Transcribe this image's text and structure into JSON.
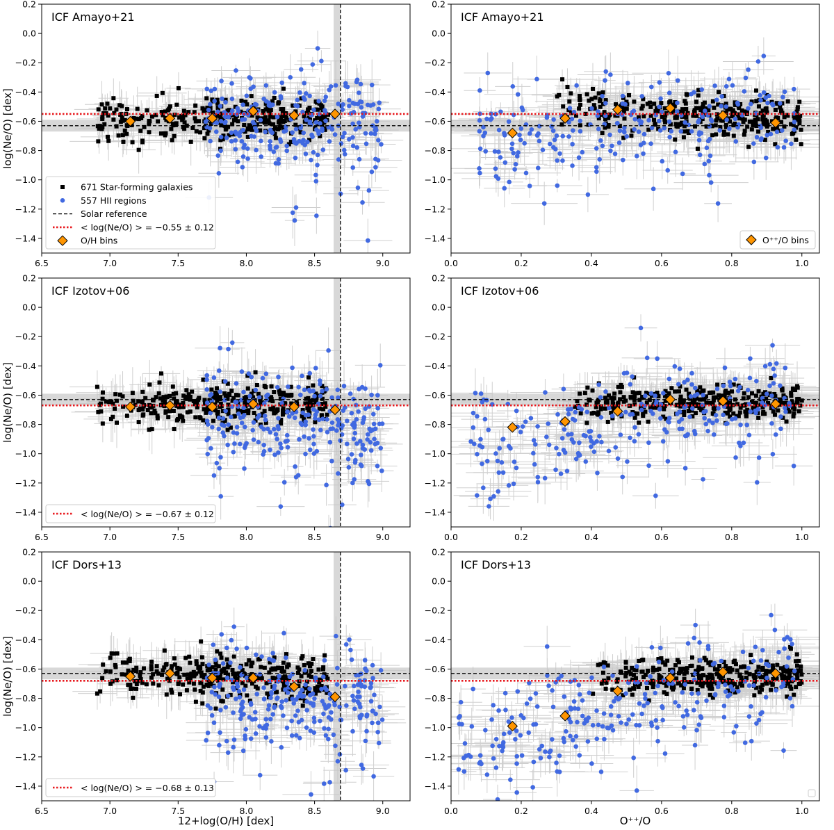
{
  "figure": {
    "ylabel": "log(Ne/O) [dex]",
    "xlabel_left": "12+log(O/H) [dex]",
    "xlabel_right": "O⁺⁺/O"
  },
  "colors": {
    "galaxies": "#000000",
    "hii": "#4169e1",
    "bins": "#ff9500",
    "mean": "#e8191e",
    "solar": "#000000",
    "band": "#c8c8c8",
    "errorbar": "#c4c4c4"
  },
  "legend": {
    "galaxies": "671 Star-forming galaxies",
    "hii": "557 HII regions",
    "solar": "Solar reference",
    "mean_amayo": "< log(Ne/O) >  = −0.55 ± 0.12",
    "oh_bins": "O/H bins",
    "opp_bins": "O⁺⁺/O bins",
    "mean_izotov": "< log(Ne/O) >  = −0.67 ± 0.12",
    "mean_dors": "< log(Ne/O) >  = −0.68 ± 0.13"
  },
  "chart_data": [
    {
      "type": "scatter",
      "title": "ICF Amayo+21",
      "xlabel": "",
      "ylabel": "log(Ne/O) [dex]",
      "xlim": [
        6.5,
        9.2
      ],
      "ylim": [
        -1.5,
        0.2
      ],
      "xticks": [
        6.5,
        7.0,
        7.5,
        8.0,
        8.5,
        9.0
      ],
      "yticks": [
        0.2,
        0.0,
        -0.2,
        -0.4,
        -0.6,
        -0.8,
        -1.0,
        -1.2,
        -1.4
      ],
      "solar_x": 8.69,
      "solar_y": -0.63,
      "mean": -0.55,
      "mean_err": 0.12,
      "bins": [
        {
          "x": 7.15,
          "y": -0.6
        },
        {
          "x": 7.44,
          "y": -0.58
        },
        {
          "x": 7.75,
          "y": -0.58
        },
        {
          "x": 8.05,
          "y": -0.53
        },
        {
          "x": 8.35,
          "y": -0.56
        },
        {
          "x": 8.65,
          "y": -0.55
        }
      ],
      "series": [
        {
          "name": "671 Star-forming galaxies",
          "x_range": [
            6.9,
            8.6
          ],
          "center": -0.58,
          "spread": 0.07,
          "trend": 0.03,
          "count": 320
        },
        {
          "name": "557 HII regions",
          "x_range": [
            7.7,
            9.0
          ],
          "center": -0.6,
          "spread": 0.18,
          "trend": 0.0,
          "count": 260
        }
      ],
      "legend_position": "lower-left"
    },
    {
      "type": "scatter",
      "title": "ICF Amayo+21",
      "xlabel": "",
      "ylabel": "",
      "xlim": [
        0.0,
        1.05
      ],
      "ylim": [
        -1.5,
        0.2
      ],
      "xticks": [
        0.0,
        0.2,
        0.4,
        0.6,
        0.8,
        1.0
      ],
      "yticks": [
        0.2,
        0.0,
        -0.2,
        -0.4,
        -0.6,
        -0.8,
        -1.0,
        -1.2,
        -1.4
      ],
      "solar_y": -0.63,
      "mean": -0.55,
      "mean_err": 0.12,
      "bins": [
        {
          "x": 0.175,
          "y": -0.68
        },
        {
          "x": 0.325,
          "y": -0.58
        },
        {
          "x": 0.475,
          "y": -0.52
        },
        {
          "x": 0.625,
          "y": -0.51
        },
        {
          "x": 0.775,
          "y": -0.56
        },
        {
          "x": 0.925,
          "y": -0.61
        }
      ],
      "series": [
        {
          "name": "671 Star-forming galaxies",
          "x_range": [
            0.3,
            1.0
          ],
          "center": -0.55,
          "spread": 0.07,
          "trend": -0.1,
          "count": 320
        },
        {
          "name": "557 HII regions",
          "x_range": [
            0.08,
            0.98
          ],
          "center": -0.62,
          "spread": 0.16,
          "trend": 0.15,
          "count": 260
        }
      ],
      "legend_position": "lower-right"
    },
    {
      "type": "scatter",
      "title": "ICF Izotov+06",
      "xlabel": "",
      "ylabel": "log(Ne/O) [dex]",
      "xlim": [
        6.5,
        9.2
      ],
      "ylim": [
        -1.5,
        0.2
      ],
      "xticks": [
        6.5,
        7.0,
        7.5,
        8.0,
        8.5,
        9.0
      ],
      "yticks": [
        0.2,
        0.0,
        -0.2,
        -0.4,
        -0.6,
        -0.8,
        -1.0,
        -1.2,
        -1.4
      ],
      "solar_x": 8.69,
      "solar_y": -0.63,
      "mean": -0.67,
      "mean_err": 0.12,
      "bins": [
        {
          "x": 7.15,
          "y": -0.68
        },
        {
          "x": 7.44,
          "y": -0.67
        },
        {
          "x": 7.75,
          "y": -0.68
        },
        {
          "x": 8.05,
          "y": -0.66
        },
        {
          "x": 8.35,
          "y": -0.68
        },
        {
          "x": 8.65,
          "y": -0.7
        }
      ],
      "series": [
        {
          "name": "671 Star-forming galaxies",
          "x_range": [
            6.9,
            8.6
          ],
          "center": -0.67,
          "spread": 0.07,
          "trend": 0.02,
          "count": 320
        },
        {
          "name": "557 HII regions",
          "x_range": [
            7.7,
            9.0
          ],
          "center": -0.76,
          "spread": 0.18,
          "trend": -0.05,
          "count": 260
        }
      ],
      "legend_position": "lower-left"
    },
    {
      "type": "scatter",
      "title": "ICF Izotov+06",
      "xlabel": "",
      "ylabel": "",
      "xlim": [
        0.0,
        1.05
      ],
      "ylim": [
        -1.5,
        0.2
      ],
      "xticks": [
        0.0,
        0.2,
        0.4,
        0.6,
        0.8,
        1.0
      ],
      "yticks": [
        0.2,
        0.0,
        -0.2,
        -0.4,
        -0.6,
        -0.8,
        -1.0,
        -1.2,
        -1.4
      ],
      "solar_y": -0.63,
      "mean": -0.67,
      "mean_err": 0.12,
      "bins": [
        {
          "x": 0.175,
          "y": -0.82
        },
        {
          "x": 0.325,
          "y": -0.78
        },
        {
          "x": 0.475,
          "y": -0.71
        },
        {
          "x": 0.625,
          "y": -0.63
        },
        {
          "x": 0.775,
          "y": -0.64
        },
        {
          "x": 0.925,
          "y": -0.66
        }
      ],
      "series": [
        {
          "name": "671 Star-forming galaxies",
          "x_range": [
            0.35,
            1.0
          ],
          "center": -0.65,
          "spread": 0.06,
          "trend": 0.0,
          "count": 320
        },
        {
          "name": "557 HII regions",
          "x_range": [
            0.05,
            0.98
          ],
          "center": -0.78,
          "spread": 0.18,
          "trend": 0.3,
          "count": 260
        }
      ],
      "legend_position": "none"
    },
    {
      "type": "scatter",
      "title": "ICF Dors+13",
      "xlabel": "12+log(O/H) [dex]",
      "ylabel": "log(Ne/O) [dex]",
      "xlim": [
        6.5,
        9.2
      ],
      "ylim": [
        -1.5,
        0.2
      ],
      "xticks": [
        6.5,
        7.0,
        7.5,
        8.0,
        8.5,
        9.0
      ],
      "yticks": [
        0.2,
        0.0,
        -0.2,
        -0.4,
        -0.6,
        -0.8,
        -1.0,
        -1.2,
        -1.4
      ],
      "solar_x": 8.69,
      "solar_y": -0.63,
      "mean": -0.68,
      "mean_err": 0.13,
      "bins": [
        {
          "x": 7.15,
          "y": -0.65
        },
        {
          "x": 7.44,
          "y": -0.63
        },
        {
          "x": 7.75,
          "y": -0.66
        },
        {
          "x": 8.05,
          "y": -0.66
        },
        {
          "x": 8.35,
          "y": -0.72
        },
        {
          "x": 8.65,
          "y": -0.79
        }
      ],
      "series": [
        {
          "name": "671 Star-forming galaxies",
          "x_range": [
            6.9,
            8.6
          ],
          "center": -0.65,
          "spread": 0.07,
          "trend": -0.05,
          "count": 320
        },
        {
          "name": "557 HII regions",
          "x_range": [
            7.7,
            9.0
          ],
          "center": -0.8,
          "spread": 0.18,
          "trend": -0.1,
          "count": 260
        }
      ],
      "legend_position": "lower-left"
    },
    {
      "type": "scatter",
      "title": "ICF Dors+13",
      "xlabel": "O⁺⁺/O",
      "ylabel": "",
      "xlim": [
        0.0,
        1.05
      ],
      "ylim": [
        -1.5,
        0.2
      ],
      "xticks": [
        0.0,
        0.2,
        0.4,
        0.6,
        0.8,
        1.0
      ],
      "yticks": [
        0.2,
        0.0,
        -0.2,
        -0.4,
        -0.6,
        -0.8,
        -1.0,
        -1.2,
        -1.4
      ],
      "solar_y": -0.63,
      "mean": -0.68,
      "mean_err": 0.13,
      "bins": [
        {
          "x": 0.175,
          "y": -0.99
        },
        {
          "x": 0.325,
          "y": -0.92
        },
        {
          "x": 0.475,
          "y": -0.75
        },
        {
          "x": 0.625,
          "y": -0.66
        },
        {
          "x": 0.775,
          "y": -0.62
        },
        {
          "x": 0.925,
          "y": -0.63
        }
      ],
      "series": [
        {
          "name": "671 Star-forming galaxies",
          "x_range": [
            0.4,
            1.0
          ],
          "center": -0.65,
          "spread": 0.06,
          "trend": 0.02,
          "count": 320
        },
        {
          "name": "557 HII regions",
          "x_range": [
            0.02,
            0.98
          ],
          "center": -0.85,
          "spread": 0.18,
          "trend": 0.5,
          "count": 260
        }
      ],
      "legend_position": "none"
    }
  ]
}
